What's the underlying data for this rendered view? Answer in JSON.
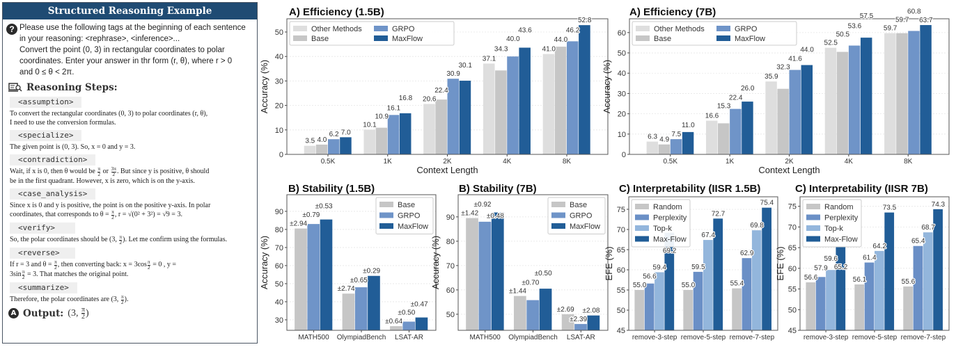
{
  "panel": {
    "title": "Structured Reasoning Example",
    "question_icon": "question-circle-icon",
    "prompt_lines": [
      "Please use the following tags at the beginning of each sentence",
      "in your reasoning: <rephrase>, <inference>...",
      "Convert the point (0, 3) in rectangular coordinates to polar",
      "coordinates. Enter your answer in thr form (r, θ), where r > 0",
      "and 0 ≤ θ < 2π."
    ],
    "steps_icon": "magnifier-book-icon",
    "steps_heading": "Reasoning Steps:",
    "steps": [
      {
        "tag": "<assumption>",
        "lines": [
          [
            {
              "t": "To convert the rectangular coordinates (0, 3) to polar coordinates (r, θ),"
            }
          ],
          [
            {
              "t": "I need to use the conversion formulas."
            }
          ]
        ]
      },
      {
        "tag": "<specialize>",
        "lines": [
          [
            {
              "t": "The given point is (0, 3). So, x = 0 and y = 3."
            }
          ]
        ]
      },
      {
        "tag": "<contradiction>",
        "lines": [
          [
            {
              "t": "Wait, if x is 0, then θ would be "
            },
            {
              "num": "π",
              "den": "2"
            },
            {
              "t": " or "
            },
            {
              "num": "3π",
              "den": "2"
            },
            {
              "t": ". But since y is positive, θ should"
            }
          ],
          [
            {
              "t": "be in the first quadrant. However, x is zero, which is on the y-axis."
            }
          ]
        ]
      },
      {
        "tag": "<case_analysis>",
        "lines": [
          [
            {
              "t": "Since x is 0 and y is positive, the point is on the positive y-axis. In polar"
            }
          ],
          [
            {
              "t": "coordinates, that corresponds to θ = "
            },
            {
              "num": "π",
              "den": "2"
            },
            {
              "t": ", r = √(0² + 3²) = √9 = 3."
            }
          ]
        ]
      },
      {
        "tag": "<verify>",
        "lines": [
          [
            {
              "t": "So, the polar coordinates should be (3, "
            },
            {
              "num": "π",
              "den": "2"
            },
            {
              "t": "). Let me confirm using the formulas."
            }
          ]
        ]
      },
      {
        "tag": "<reverse>",
        "lines": [
          [
            {
              "t": "If r = 3 and θ = "
            },
            {
              "num": "π",
              "den": "2"
            },
            {
              "t": ", then converting back: x = 3cos"
            },
            {
              "num": "π",
              "den": "2"
            },
            {
              "t": " = 0 , y ="
            }
          ],
          [
            {
              "t": "3sin"
            },
            {
              "num": "π",
              "den": "2"
            },
            {
              "t": " = 3. That matches the original point."
            }
          ]
        ]
      },
      {
        "tag": "<summarize>",
        "lines": [
          [
            {
              "t": "Therefore, the polar coordinates are (3, "
            },
            {
              "num": "π",
              "den": "2"
            },
            {
              "t": ")."
            }
          ]
        ]
      }
    ],
    "output_icon": "A",
    "output_label": "Output:",
    "output_value": {
      "pre": "(3, ",
      "num": "π",
      "den": "2",
      "post": ")"
    }
  },
  "chart_data": [
    {
      "type": "bar",
      "title": "A) Efficiency (1.5B)",
      "xlabel": "Context Length",
      "ylabel": "Accuracy (%)",
      "ylim": [
        0,
        55.4
      ],
      "yticks": [
        0,
        10,
        20,
        30,
        40,
        50
      ],
      "grid": true,
      "legend": "top-left",
      "categories": [
        "0.5K",
        "1K",
        "2K",
        "4K",
        "8K"
      ],
      "series": [
        {
          "name": "Other Methods",
          "color": "#dedede",
          "values": [
            3.5,
            10.1,
            20.6,
            37.1,
            41.0
          ],
          "labels": [
            "3.5",
            "10.1",
            "20.6",
            "37.1",
            "41.0"
          ]
        },
        {
          "name": "Base",
          "color": "#c6c6c6",
          "values": [
            4.0,
            10.9,
            22.4,
            34.3,
            44.0
          ],
          "labels": [
            "4.0",
            "10.9",
            "22.4",
            "34.3",
            "44.0"
          ]
        },
        {
          "name": "GRPO",
          "color": "#6f94c8",
          "values": [
            6.2,
            16.1,
            30.9,
            40.0,
            46.2
          ],
          "labels": [
            "6.2",
            "16.1",
            "30.9",
            "40.0",
            "46.2"
          ]
        },
        {
          "name": "MaxFlow",
          "color": "#215d97",
          "values": [
            7.0,
            16.8,
            30.1,
            43.6,
            52.8
          ],
          "labels": [
            "7.0",
            "16.8",
            "30.1",
            "43.6",
            "52.8"
          ]
        }
      ]
    },
    {
      "type": "bar",
      "title": "A) Efficiency (7B)",
      "xlabel": "Context Length",
      "ylabel": "Accuracy (%)",
      "ylim": [
        0,
        66.8
      ],
      "yticks": [
        0,
        10,
        20,
        30,
        40,
        50,
        60
      ],
      "grid": true,
      "legend": "top-left",
      "categories": [
        "0.5K",
        "1K",
        "2K",
        "4K",
        "8K"
      ],
      "series": [
        {
          "name": "Other Methods",
          "color": "#dedede",
          "values": [
            6.3,
            16.6,
            35.9,
            52.5,
            59.7
          ],
          "labels": [
            "6.3",
            "16.6",
            "35.9",
            "52.5",
            "59.7"
          ]
        },
        {
          "name": "Base",
          "color": "#c6c6c6",
          "values": [
            4.9,
            15.3,
            32.3,
            50.5,
            59.7
          ],
          "labels": [
            "4.9",
            "15.3",
            "32.3",
            "50.5",
            "59.7"
          ]
        },
        {
          "name": "GRPO",
          "color": "#6f94c8",
          "values": [
            7.5,
            22.4,
            41.6,
            53.6,
            60.8
          ],
          "labels": [
            "7.5",
            "22.4",
            "41.6",
            "53.6",
            "60.8"
          ]
        },
        {
          "name": "MaxFlow",
          "color": "#215d97",
          "values": [
            11.0,
            26.0,
            44.0,
            57.5,
            63.7
          ],
          "labels": [
            "11.0",
            "26.0",
            "44.0",
            "57.5",
            "63.7"
          ]
        }
      ]
    },
    {
      "type": "bar",
      "title": "B) Stability (1.5B)",
      "xlabel": "",
      "ylabel": "Accuracy (%)",
      "ylim": [
        24.2,
        99.2
      ],
      "yticks": [
        30,
        40,
        50,
        60,
        70,
        80,
        90
      ],
      "grid": true,
      "legend": "top-right",
      "categories": [
        "MATH500",
        "OlympiadBench",
        "LSAT-AR"
      ],
      "series": [
        {
          "name": "Base",
          "color": "#c6c6c6",
          "values": [
            80.5,
            44.5,
            26.5
          ],
          "labels": [
            "±2.94",
            "±2.74",
            "±0.64"
          ]
        },
        {
          "name": "GRPO",
          "color": "#6f94c8",
          "values": [
            83.0,
            48.0,
            29.0
          ],
          "labels": [
            "±0.79",
            "±0.65",
            "±0.50"
          ]
        },
        {
          "name": "MaxFlow",
          "color": "#215d97",
          "values": [
            85.5,
            54.3,
            31.3
          ],
          "labels": [
            "±0.53",
            "±0.29",
            "±0.47"
          ]
        }
      ]
    },
    {
      "type": "bar",
      "title": "B) Stability (7B)",
      "xlabel": "",
      "ylabel": "Accuracy (%)",
      "ylim": [
        43.4,
        99.1
      ],
      "yticks": [
        50,
        60,
        70,
        80,
        90
      ],
      "grid": true,
      "legend": "top-right",
      "categories": [
        "MATH500",
        "OlympiadBench",
        "LSAT-AR"
      ],
      "series": [
        {
          "name": "Base",
          "color": "#c6c6c6",
          "values": [
            89.5,
            57.5,
            50.0
          ],
          "labels": [
            "±1.42",
            "±1.44",
            "±2.69"
          ]
        },
        {
          "name": "GRPO",
          "color": "#6f94c8",
          "values": [
            88.0,
            55.8,
            46.0
          ],
          "labels": [
            "±0.92",
            "±0.70",
            "±2.39"
          ]
        },
        {
          "name": "MaxFlow",
          "color": "#215d97",
          "values": [
            91.8,
            60.5,
            49.5
          ],
          "labels": [
            "±0.48",
            "±0.50",
            "±2.08"
          ]
        }
      ]
    },
    {
      "type": "bar",
      "title": "C) Interpretability  (IISR 1.5B)",
      "xlabel": "",
      "ylabel": "EFE (%)",
      "ylim": [
        45,
        78.1
      ],
      "yticks": [
        45,
        50,
        55,
        60,
        65,
        70,
        75
      ],
      "grid": true,
      "legend": "top-left",
      "categories": [
        "remove-3-step",
        "remove-5-step",
        "remove-7-step"
      ],
      "series": [
        {
          "name": "Random",
          "color": "#c6c6c6",
          "values": [
            55.0,
            55.0,
            55.4
          ],
          "labels": [
            "55.0",
            "55.0",
            "55.4"
          ]
        },
        {
          "name": "Perplexity",
          "color": "#6a8fc6",
          "values": [
            56.6,
            59.5,
            62.9
          ],
          "labels": [
            "56.6",
            "59.5",
            "62.9"
          ]
        },
        {
          "name": "Top-k",
          "color": "#93b6dc",
          "values": [
            59.4,
            67.4,
            69.8
          ],
          "labels": [
            "59.4",
            "67.4",
            "69.8"
          ]
        },
        {
          "name": "Max-Flow",
          "color": "#215d97",
          "values": [
            69.2,
            72.7,
            75.4
          ],
          "labels": [
            "69.2",
            "72.7",
            "75.4"
          ]
        }
      ]
    },
    {
      "type": "bar",
      "title": "C) Interpretability  (IISR 7B)",
      "xlabel": "",
      "ylabel": "EFE (%)",
      "ylim": [
        45,
        77.3
      ],
      "yticks": [
        45,
        50,
        55,
        60,
        65,
        70,
        75
      ],
      "grid": true,
      "legend": "top-left",
      "categories": [
        "remove-3-step",
        "remove-5-step",
        "remove-7-step"
      ],
      "series": [
        {
          "name": "Random",
          "color": "#c6c6c6",
          "values": [
            56.6,
            56.1,
            55.6
          ],
          "labels": [
            "56.6",
            "56.1",
            "55.6"
          ]
        },
        {
          "name": "Perplexity",
          "color": "#6a8fc6",
          "values": [
            57.9,
            61.4,
            65.4
          ],
          "labels": [
            "57.9",
            "61.4",
            "65.4"
          ]
        },
        {
          "name": "Top-k",
          "color": "#93b6dc",
          "values": [
            59.6,
            64.2,
            68.7
          ],
          "labels": [
            "59.6",
            "64.2",
            "68.7"
          ]
        },
        {
          "name": "Max-Flow",
          "color": "#215d97",
          "values": [
            65.2,
            73.5,
            74.3
          ],
          "labels": [
            "65.2",
            "73.5",
            "74.3"
          ]
        }
      ]
    }
  ]
}
